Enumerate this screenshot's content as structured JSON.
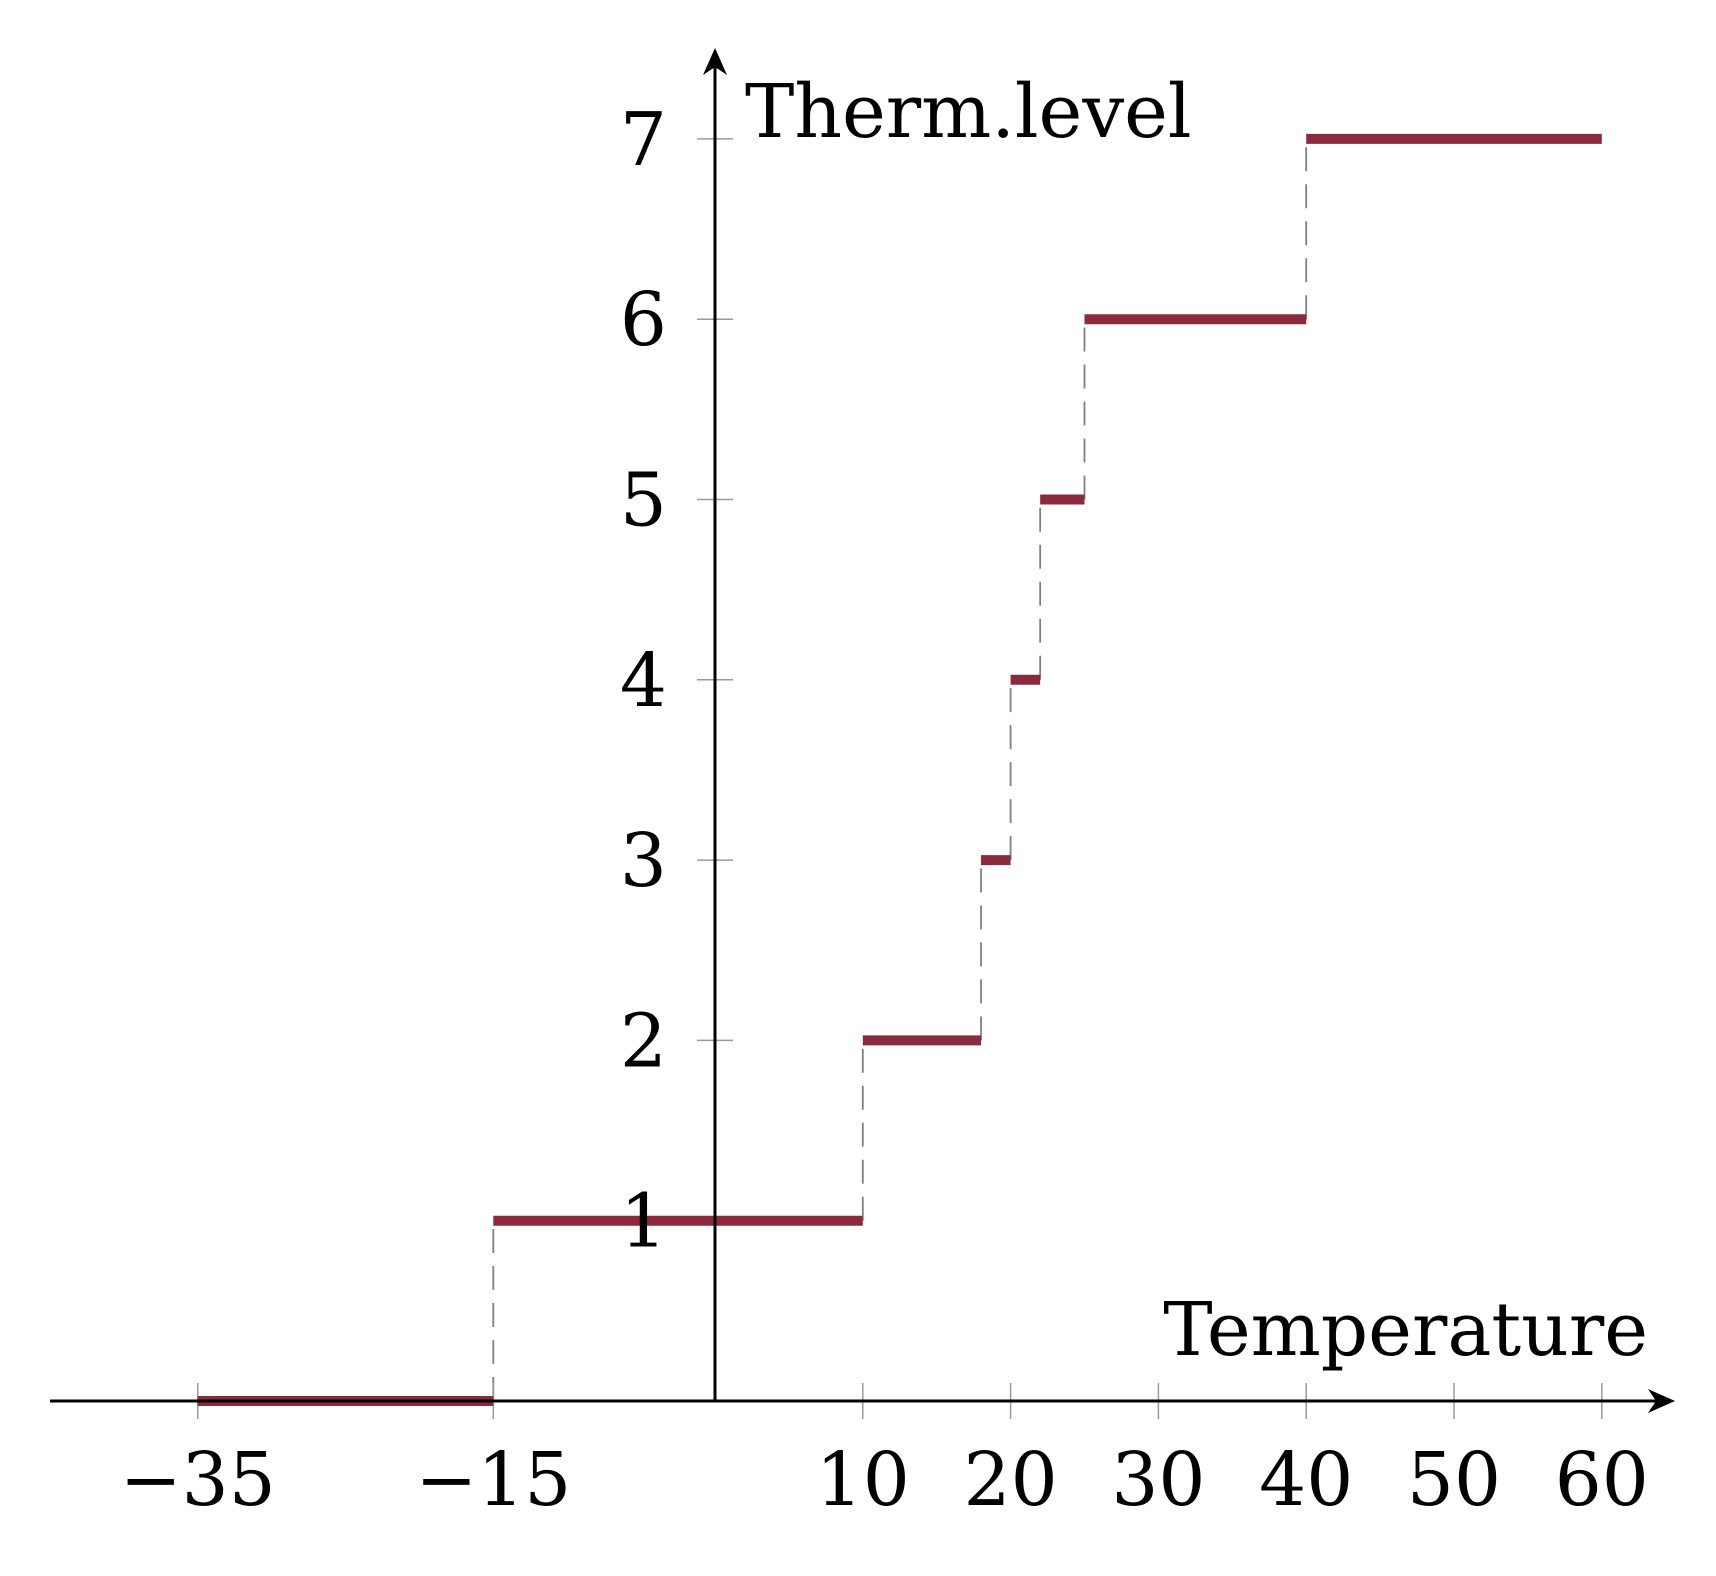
{
  "chart_data": {
    "type": "line",
    "subtype": "step",
    "xlabel": "Temperature",
    "ylabel": "Therm.level",
    "xlim": [
      -45,
      65
    ],
    "ylim": [
      0,
      7.6
    ],
    "x_ticks": [
      -35,
      -15,
      10,
      20,
      30,
      40,
      50,
      60
    ],
    "x_tick_labels": [
      "−35",
      "−15",
      "10",
      "20",
      "30",
      "40",
      "50",
      "60"
    ],
    "y_ticks": [
      1,
      2,
      3,
      4,
      5,
      6,
      7
    ],
    "y_tick_labels": [
      "1",
      "2",
      "3",
      "4",
      "5",
      "6",
      "7"
    ],
    "grid": false,
    "series": [
      {
        "steps": [
          {
            "x_start": -35,
            "x_end": -15,
            "y": 0
          },
          {
            "x_start": -15,
            "x_end": 10,
            "y": 1
          },
          {
            "x_start": 10,
            "x_end": 18,
            "y": 2
          },
          {
            "x_start": 18,
            "x_end": 20,
            "y": 3
          },
          {
            "x_start": 20,
            "x_end": 22,
            "y": 4
          },
          {
            "x_start": 22,
            "x_end": 25,
            "y": 5
          },
          {
            "x_start": 25,
            "x_end": 40,
            "y": 6
          },
          {
            "x_start": 40,
            "x_end": 60,
            "y": 7
          }
        ]
      }
    ],
    "colors": {
      "step": "#8b2a3c",
      "connector": "#808080",
      "axis": "#000000"
    }
  }
}
